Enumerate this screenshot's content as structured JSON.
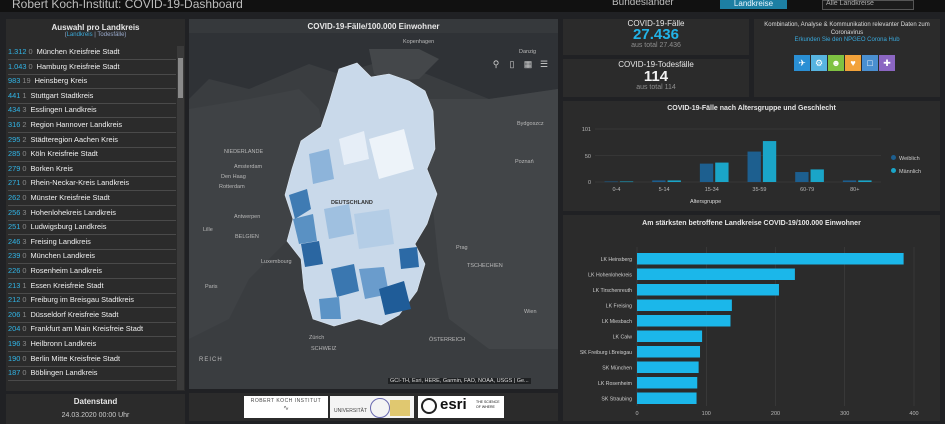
{
  "header": {
    "title": "Robert Koch-Institut: COVID-19-Dashboard",
    "toggle_text": "Bundesländer",
    "active_button": "Landkreise",
    "select_placeholder": "Alle Landkreise"
  },
  "left_list": {
    "title": "Auswahl pro Landkreis",
    "sub_a": "Landkreis",
    "sub_b": "Todesfälle",
    "rows": [
      {
        "value": "1.312",
        "deaths": "0",
        "name": "München Kreisfreie Stadt"
      },
      {
        "value": "1.043",
        "deaths": "0",
        "name": "Hamburg Kreisfreie Stadt"
      },
      {
        "value": "983",
        "deaths": "19",
        "name": "Heinsberg Kreis"
      },
      {
        "value": "441",
        "deaths": "1",
        "name": "Stuttgart Stadtkreis"
      },
      {
        "value": "434",
        "deaths": "3",
        "name": "Esslingen Landkreis"
      },
      {
        "value": "316",
        "deaths": "2",
        "name": "Region Hannover Landkreis"
      },
      {
        "value": "295",
        "deaths": "2",
        "name": "Städteregion Aachen Kreis"
      },
      {
        "value": "285",
        "deaths": "0",
        "name": "Köln Kreisfreie Stadt"
      },
      {
        "value": "279",
        "deaths": "0",
        "name": "Borken Kreis"
      },
      {
        "value": "271",
        "deaths": "0",
        "name": "Rhein-Neckar-Kreis Landkreis"
      },
      {
        "value": "262",
        "deaths": "0",
        "name": "Münster Kreisfreie Stadt"
      },
      {
        "value": "256",
        "deaths": "3",
        "name": "Hohenlohekreis Landkreis"
      },
      {
        "value": "251",
        "deaths": "0",
        "name": "Ludwigsburg Landkreis"
      },
      {
        "value": "246",
        "deaths": "3",
        "name": "Freising Landkreis"
      },
      {
        "value": "239",
        "deaths": "0",
        "name": "München Landkreis"
      },
      {
        "value": "226",
        "deaths": "0",
        "name": "Rosenheim Landkreis"
      },
      {
        "value": "213",
        "deaths": "1",
        "name": "Essen Kreisfreie Stadt"
      },
      {
        "value": "212",
        "deaths": "0",
        "name": "Freiburg im Breisgau Stadtkreis"
      },
      {
        "value": "206",
        "deaths": "1",
        "name": "Düsseldorf Kreisfreie Stadt"
      },
      {
        "value": "204",
        "deaths": "0",
        "name": "Frankfurt am Main Kreisfreie Stadt"
      },
      {
        "value": "196",
        "deaths": "3",
        "name": "Heilbronn Landkreis"
      },
      {
        "value": "190",
        "deaths": "0",
        "name": "Berlin Mitte Kreisfreie Stadt"
      },
      {
        "value": "187",
        "deaths": "0",
        "name": "Böblingen Landkreis"
      }
    ]
  },
  "datenstand": {
    "title": "Datenstand",
    "value": "24.03.2020 00:00 Uhr"
  },
  "map": {
    "title": "COVID-19-Fälle/100.000 Einwohner",
    "labels": [
      "Kopenhagen",
      "Danzig",
      "NIEDERLANDE",
      "Bydgoszcz",
      "Den Haag",
      "Amsterdam",
      "Poznań",
      "Rotterdam",
      "DEUTSCHLAND",
      "Antwerpen",
      "Lille",
      "BELGIEN",
      "Prag",
      "Luxembourg",
      "TSCHECHIEN",
      "Paris",
      "Wien",
      "Zürich",
      "SCHWEIZ",
      "ÖSTERREICH",
      "REICH"
    ],
    "attribution": "GCI-TH, Esri, HERE, Garmin, FAO, NOAA, USGS | Ge..."
  },
  "kpi_cases": {
    "label": "COVID-19-Fälle",
    "value": "27.436",
    "sub": "aus total 27.436"
  },
  "kpi_deaths": {
    "label": "COVID-19-Todesfälle",
    "value": "114",
    "sub": "aus total 114"
  },
  "info": {
    "text": "Kombination, Analyse & Kommunikation relevanter Daten zum Coronavirus",
    "link": "Erkunden Sie den NPGEO Corona Hub",
    "icons": [
      "car-icon",
      "gear-icon",
      "people-icon",
      "heart-icon",
      "bed-icon",
      "hospital-icon"
    ]
  },
  "age_chart": {
    "title": "COVID-19-Fälle nach Altersgruppe und Geschlecht",
    "xlabel": "Altersgruppe",
    "legend": [
      "Weiblich",
      "Männlich"
    ],
    "colors": {
      "w": "#1d5f8f",
      "m": "#1aa5c8"
    }
  },
  "chart_data": [
    {
      "type": "bar",
      "title": "COVID-19-Fälle nach Altersgruppe und Geschlecht",
      "xlabel": "Altersgruppe",
      "ylabel": "",
      "categories": [
        "0-4",
        "5-14",
        "15-34",
        "35-59",
        "60-79",
        "80+"
      ],
      "series": [
        {
          "name": "Weiblich",
          "values": [
            1,
            3,
            35,
            58,
            19,
            3
          ]
        },
        {
          "name": "Männlich",
          "values": [
            1,
            3,
            37,
            78,
            24,
            3
          ]
        }
      ],
      "ylim": [
        0,
        101
      ],
      "yticks": [
        "0",
        "50",
        "101"
      ]
    },
    {
      "type": "bar",
      "orientation": "horizontal",
      "title": "Am stärksten betroffene Landkreise COVID-19/100.000 Einwohner",
      "categories": [
        "LK Heinsberg",
        "LK Hohenlohekreis",
        "LK Tirschenreuth",
        "LK Freising",
        "LK Miesbach",
        "LK Calw",
        "SK Freiburg i.Breisgau",
        "SK München",
        "LK Rosenheim",
        "SK Straubing"
      ],
      "values": [
        385,
        228,
        205,
        137,
        135,
        94,
        91,
        89,
        87,
        86
      ],
      "xlim": [
        0,
        400
      ],
      "xticks": [
        "0",
        "100",
        "200",
        "300",
        "400"
      ],
      "color": "#1bb7ea"
    }
  ],
  "bottom": {
    "logos": [
      "ROBERT KOCH INSTITUT",
      "UNIVERSITÄT",
      "esri",
      "THE SCIENCE OF WHERE"
    ]
  }
}
